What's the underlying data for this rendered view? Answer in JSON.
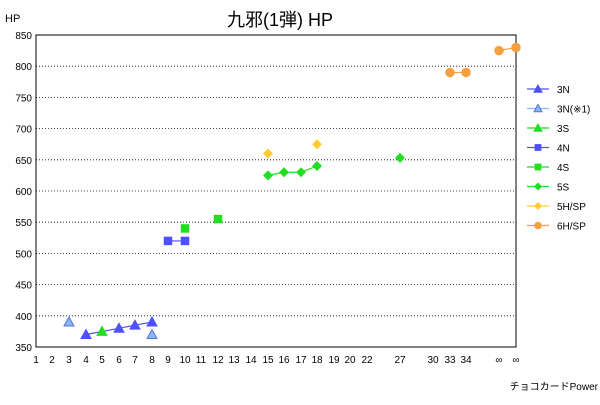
{
  "chart_data": {
    "type": "scatter",
    "title": "九邪(1弾) HP",
    "ylabel": "HP",
    "xlabel": "",
    "credit": "チョコカードPower",
    "ylim": [
      350,
      850
    ],
    "yticks": [
      350,
      400,
      450,
      500,
      550,
      600,
      650,
      700,
      750,
      800,
      850
    ],
    "xticks": [
      "1",
      "2",
      "3",
      "4",
      "5",
      "6",
      "7",
      "8",
      "9",
      "10",
      "11",
      "12",
      "13",
      "14",
      "15",
      "16",
      "17",
      "18",
      "19",
      "20",
      "22",
      "27",
      "30",
      "33",
      "34",
      "∞",
      "∞"
    ],
    "grid": "horizontal-dotted",
    "legend_position": "right",
    "series": [
      {
        "name": "3N",
        "color": "#4f4fff",
        "marker": "triangle",
        "connected": true,
        "points": [
          {
            "x": "4",
            "y": 370
          },
          {
            "x": "6",
            "y": 380
          },
          {
            "x": "7",
            "y": 385
          },
          {
            "x": "8",
            "y": 390
          }
        ]
      },
      {
        "name": "3N(※1)",
        "color": "#8ab4ff",
        "marker": "triangle-outline",
        "connected": false,
        "points": [
          {
            "x": "3",
            "y": 390
          },
          {
            "x": "8",
            "y": 370
          }
        ]
      },
      {
        "name": "3S",
        "color": "#22dd22",
        "marker": "triangle",
        "connected": false,
        "points": [
          {
            "x": "5",
            "y": 375
          }
        ]
      },
      {
        "name": "4N",
        "color": "#4f4fff",
        "marker": "square",
        "connected": true,
        "points": [
          {
            "x": "9",
            "y": 520
          },
          {
            "x": "10",
            "y": 520
          }
        ]
      },
      {
        "name": "4S",
        "color": "#22dd22",
        "marker": "square",
        "connected": false,
        "points": [
          {
            "x": "10",
            "y": 540
          },
          {
            "x": "12",
            "y": 555
          }
        ]
      },
      {
        "name": "5S",
        "color": "#22dd22",
        "marker": "diamond",
        "connected": true,
        "points": [
          {
            "x": "15",
            "y": 625
          },
          {
            "x": "16",
            "y": 630
          },
          {
            "x": "17",
            "y": 630
          },
          {
            "x": "18",
            "y": 640
          }
        ]
      },
      {
        "name": "5S",
        "color": "#22dd22",
        "marker": "diamond",
        "connected": false,
        "points": [
          {
            "x": "27",
            "y": 653
          }
        ]
      },
      {
        "name": "5H/SP",
        "color": "#ffcc33",
        "marker": "diamond",
        "connected": false,
        "points": [
          {
            "x": "15",
            "y": 660
          },
          {
            "x": "18",
            "y": 675
          }
        ]
      },
      {
        "name": "6H/SP",
        "color": "#f5a040",
        "marker": "circle",
        "connected": true,
        "points": [
          {
            "x": "33",
            "y": 790
          },
          {
            "x": "34",
            "y": 790
          }
        ]
      },
      {
        "name": "6H/SP",
        "color": "#f5a040",
        "marker": "circle",
        "connected": true,
        "points": [
          {
            "x": "∞",
            "y": 825
          },
          {
            "x": "∞#2",
            "y": 830
          }
        ]
      }
    ],
    "legend": [
      {
        "name": "3N",
        "color": "#4f4fff",
        "marker": "triangle"
      },
      {
        "name": "3N(※1)",
        "color": "#8ab4ff",
        "marker": "triangle-outline"
      },
      {
        "name": "3S",
        "color": "#22dd22",
        "marker": "triangle"
      },
      {
        "name": "4N",
        "color": "#4f4fff",
        "marker": "square"
      },
      {
        "name": "4S",
        "color": "#22dd22",
        "marker": "square"
      },
      {
        "name": "5S",
        "color": "#22dd22",
        "marker": "diamond"
      },
      {
        "name": "5H/SP",
        "color": "#ffcc33",
        "marker": "diamond"
      },
      {
        "name": "6H/SP",
        "color": "#f5a040",
        "marker": "circle"
      }
    ]
  }
}
